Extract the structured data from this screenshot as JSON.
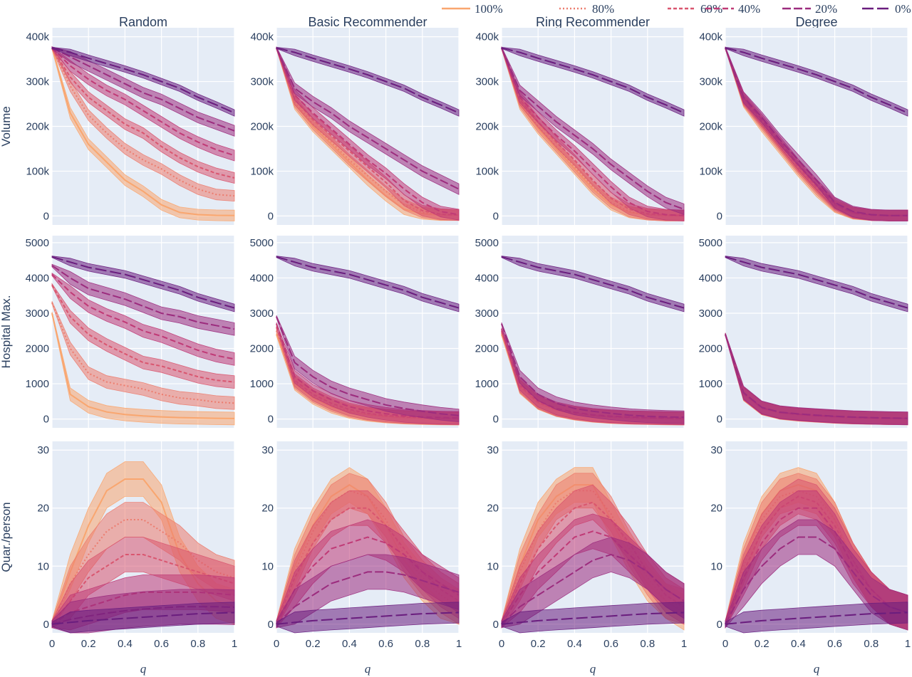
{
  "legend": [
    {
      "label": "100%",
      "color": "#f9a66f",
      "dash": "solid"
    },
    {
      "label": "80%",
      "color": "#ec7c6e",
      "dash": "dot"
    },
    {
      "label": "60%",
      "color": "#d9566f",
      "dash": "dash-short"
    },
    {
      "label": "40%",
      "color": "#c03a76",
      "dash": "dash"
    },
    {
      "label": "20%",
      "color": "#9c2c7e",
      "dash": "dash-long"
    },
    {
      "label": "0%",
      "color": "#6a1d7e",
      "dash": "dash-xlong"
    }
  ],
  "chart_data": {
    "type": "line",
    "layout": "grid-3x4",
    "column_titles": [
      "Random",
      "Basic Recommender",
      "Ring Recommender",
      "Degree"
    ],
    "row_labels": [
      "Volume",
      "Hospital Max.",
      "Quar./person"
    ],
    "x_label": "q",
    "x": [
      0,
      0.1,
      0.2,
      0.3,
      0.4,
      0.5,
      0.6,
      0.7,
      0.8,
      0.9,
      1.0
    ],
    "x_ticks": [
      "0",
      "0.2",
      "0.4",
      "0.6",
      "0.8",
      "1"
    ],
    "rows": [
      {
        "name": "Volume",
        "ylim": [
          -20000,
          420000
        ],
        "y_ticks": [
          {
            "v": 0,
            "t": "0"
          },
          {
            "v": 100000,
            "t": "100k"
          },
          {
            "v": 200000,
            "t": "200k"
          },
          {
            "v": 300000,
            "t": "300k"
          },
          {
            "v": 400000,
            "t": "400k"
          }
        ],
        "band_width": 12000
      },
      {
        "name": "Hospital Max.",
        "ylim": [
          -250,
          5200
        ],
        "y_ticks": [
          {
            "v": 0,
            "t": "0"
          },
          {
            "v": 1000,
            "t": "1000"
          },
          {
            "v": 2000,
            "t": "2000"
          },
          {
            "v": 3000,
            "t": "3000"
          },
          {
            "v": 4000,
            "t": "4000"
          },
          {
            "v": 5000,
            "t": "5000"
          }
        ],
        "band_width": 180
      },
      {
        "name": "Quar./person",
        "ylim": [
          -1.5,
          31.5
        ],
        "y_ticks": [
          {
            "v": 0,
            "t": "0"
          },
          {
            "v": 10,
            "t": "10"
          },
          {
            "v": 20,
            "t": "20"
          },
          {
            "v": 30,
            "t": "30"
          }
        ],
        "band_width": 3
      }
    ],
    "panels": [
      [
        [
          [
            375000,
            230000,
            160000,
            120000,
            80000,
            55000,
            25000,
            8000,
            3000,
            1500,
            1000
          ],
          [
            375000,
            290000,
            225000,
            185000,
            150000,
            125000,
            105000,
            80000,
            60000,
            48000,
            45000
          ],
          [
            375000,
            310000,
            265000,
            235000,
            205000,
            185000,
            155000,
            130000,
            110000,
            95000,
            85000
          ],
          [
            375000,
            335000,
            305000,
            280000,
            260000,
            235000,
            210000,
            185000,
            165000,
            148000,
            135000
          ],
          [
            375000,
            355000,
            335000,
            315000,
            295000,
            275000,
            260000,
            240000,
            220000,
            205000,
            190000
          ],
          [
            375000,
            365000,
            352000,
            340000,
            328000,
            315000,
            300000,
            285000,
            265000,
            248000,
            230000
          ]
        ],
        [
          [
            375000,
            250000,
            200000,
            160000,
            120000,
            80000,
            45000,
            15000,
            5000,
            2000,
            2000
          ],
          [
            375000,
            255000,
            205000,
            165000,
            125000,
            90000,
            55000,
            25000,
            8000,
            3000,
            2000
          ],
          [
            375000,
            260000,
            215000,
            180000,
            145000,
            110000,
            75000,
            35000,
            12000,
            4000,
            2000
          ],
          [
            375000,
            270000,
            230000,
            195000,
            160000,
            125000,
            95000,
            60000,
            30000,
            10000,
            3000
          ],
          [
            375000,
            285000,
            255000,
            230000,
            200000,
            175000,
            150000,
            125000,
            100000,
            80000,
            60000
          ],
          [
            375000,
            365000,
            352000,
            340000,
            328000,
            315000,
            300000,
            285000,
            265000,
            248000,
            230000
          ]
        ],
        [
          [
            375000,
            250000,
            195000,
            150000,
            105000,
            60000,
            25000,
            8000,
            3000,
            1000,
            1000
          ],
          [
            375000,
            255000,
            200000,
            155000,
            110000,
            65000,
            30000,
            10000,
            3000,
            1000,
            1000
          ],
          [
            375000,
            260000,
            210000,
            165000,
            125000,
            80000,
            40000,
            15000,
            5000,
            2000,
            1000
          ],
          [
            375000,
            265000,
            220000,
            180000,
            145000,
            105000,
            65000,
            30000,
            10000,
            3000,
            1000
          ],
          [
            375000,
            280000,
            245000,
            210000,
            180000,
            150000,
            115000,
            85000,
            55000,
            30000,
            15000
          ],
          [
            375000,
            365000,
            352000,
            340000,
            328000,
            315000,
            300000,
            285000,
            265000,
            248000,
            230000
          ]
        ],
        [
          [
            375000,
            255000,
            200000,
            150000,
            100000,
            55000,
            20000,
            5000,
            2000,
            1000,
            1000
          ],
          [
            375000,
            258000,
            205000,
            155000,
            105000,
            60000,
            22000,
            6000,
            2000,
            1000,
            1000
          ],
          [
            375000,
            260000,
            210000,
            160000,
            110000,
            65000,
            25000,
            7000,
            2000,
            1000,
            1000
          ],
          [
            375000,
            263000,
            215000,
            165000,
            115000,
            70000,
            28000,
            8000,
            2000,
            1000,
            1000
          ],
          [
            375000,
            265000,
            220000,
            170000,
            125000,
            80000,
            30000,
            10000,
            3000,
            1000,
            1000
          ],
          [
            375000,
            365000,
            352000,
            340000,
            328000,
            315000,
            300000,
            285000,
            265000,
            248000,
            230000
          ]
        ]
      ],
      [
        [
          [
            3000,
            700,
            350,
            200,
            130,
            90,
            60,
            40,
            30,
            20,
            15
          ],
          [
            3300,
            2000,
            1300,
            1050,
            950,
            850,
            700,
            600,
            550,
            480,
            450
          ],
          [
            3800,
            2900,
            2400,
            2100,
            1850,
            1600,
            1500,
            1350,
            1200,
            1100,
            1050
          ],
          [
            4100,
            3600,
            3200,
            2950,
            2750,
            2500,
            2350,
            2150,
            1950,
            1800,
            1700
          ],
          [
            4350,
            4000,
            3700,
            3550,
            3400,
            3200,
            3000,
            2900,
            2750,
            2650,
            2550
          ],
          [
            4600,
            4450,
            4300,
            4200,
            4100,
            3950,
            3800,
            3650,
            3450,
            3300,
            3150
          ]
        ],
        [
          [
            2400,
            1000,
            600,
            350,
            200,
            120,
            70,
            40,
            25,
            15,
            10
          ],
          [
            2500,
            1050,
            650,
            400,
            230,
            140,
            80,
            50,
            30,
            20,
            15
          ],
          [
            2600,
            1100,
            700,
            450,
            270,
            160,
            100,
            60,
            40,
            25,
            20
          ],
          [
            2700,
            1200,
            800,
            550,
            350,
            230,
            150,
            90,
            60,
            40,
            30
          ],
          [
            2900,
            1600,
            1200,
            900,
            700,
            550,
            400,
            300,
            220,
            150,
            100
          ],
          [
            4600,
            4450,
            4300,
            4200,
            4100,
            3950,
            3800,
            3650,
            3450,
            3300,
            3150
          ]
        ],
        [
          [
            2400,
            900,
            450,
            250,
            150,
            90,
            55,
            35,
            25,
            15,
            10
          ],
          [
            2450,
            920,
            460,
            260,
            155,
            95,
            60,
            38,
            28,
            18,
            12
          ],
          [
            2500,
            950,
            480,
            270,
            165,
            100,
            65,
            40,
            30,
            20,
            15
          ],
          [
            2550,
            1000,
            520,
            300,
            190,
            120,
            80,
            55,
            40,
            30,
            20
          ],
          [
            2700,
            1200,
            700,
            450,
            300,
            220,
            160,
            110,
            80,
            60,
            50
          ],
          [
            4600,
            4450,
            4300,
            4200,
            4100,
            3950,
            3800,
            3650,
            3450,
            3300,
            3150
          ]
        ],
        [
          [
            2400,
            700,
            300,
            170,
            120,
            90,
            60,
            40,
            30,
            20,
            15
          ],
          [
            2400,
            710,
            305,
            175,
            125,
            92,
            62,
            42,
            30,
            20,
            15
          ],
          [
            2400,
            720,
            310,
            180,
            130,
            95,
            65,
            45,
            32,
            22,
            16
          ],
          [
            2400,
            730,
            320,
            185,
            135,
            100,
            70,
            48,
            35,
            24,
            18
          ],
          [
            2400,
            750,
            330,
            195,
            145,
            110,
            80,
            55,
            40,
            28,
            20
          ],
          [
            4600,
            4450,
            4300,
            4200,
            4100,
            3950,
            3800,
            3650,
            3450,
            3300,
            3150
          ]
        ]
      ],
      [
        [
          [
            0,
            9,
            17,
            23,
            25,
            25,
            21,
            12,
            7,
            4,
            3
          ],
          [
            0,
            7,
            12,
            16,
            18,
            18,
            16,
            14,
            11,
            9,
            8
          ],
          [
            0,
            4,
            8,
            10,
            12,
            12,
            11,
            10,
            9,
            8,
            7
          ],
          [
            0,
            2,
            3,
            4,
            5,
            5.5,
            5.5,
            5.5,
            5.5,
            5.3,
            5
          ],
          [
            0,
            0.8,
            1.4,
            1.9,
            2.3,
            2.6,
            2.8,
            3,
            3,
            3,
            2.9
          ],
          [
            0,
            0.3,
            0.6,
            0.8,
            1,
            1.2,
            1.4,
            1.6,
            1.8,
            1.9,
            2
          ]
        ],
        [
          [
            0,
            10,
            17,
            22,
            24,
            22,
            17,
            11,
            7,
            4,
            3
          ],
          [
            0,
            9,
            16,
            21,
            23,
            22,
            18,
            12,
            8,
            5,
            3
          ],
          [
            0,
            8,
            14,
            18,
            20,
            20,
            17,
            13,
            9,
            6,
            4
          ],
          [
            0,
            6,
            10,
            13,
            14,
            15,
            14,
            12,
            9,
            7,
            5
          ],
          [
            0,
            3,
            5,
            7,
            8,
            9,
            9,
            8.5,
            7.5,
            6.5,
            5.5
          ],
          [
            0,
            0.3,
            0.6,
            0.8,
            1,
            1.2,
            1.4,
            1.6,
            1.8,
            1.9,
            2
          ]
        ],
        [
          [
            0,
            10,
            18,
            22,
            24,
            24,
            18,
            12,
            7,
            4,
            2
          ],
          [
            0,
            9,
            16,
            21,
            23,
            23,
            19,
            13,
            8,
            4,
            3
          ],
          [
            0,
            7,
            13,
            17,
            20,
            21,
            18,
            14,
            9,
            5,
            3
          ],
          [
            0,
            5,
            9,
            12,
            15,
            16,
            15,
            12,
            9,
            6,
            4
          ],
          [
            0,
            3,
            5,
            7,
            9,
            11,
            12,
            11,
            9,
            6,
            4
          ],
          [
            0,
            0.3,
            0.6,
            0.8,
            1,
            1.2,
            1.4,
            1.6,
            1.8,
            1.9,
            2
          ]
        ],
        [
          [
            0,
            11,
            19,
            23,
            24,
            23,
            18,
            11,
            6,
            3,
            2
          ],
          [
            0,
            10,
            18,
            22,
            23,
            22,
            18,
            11,
            6,
            3,
            2
          ],
          [
            0,
            9,
            16,
            20,
            22,
            21,
            17,
            11,
            6,
            3,
            2
          ],
          [
            0,
            8,
            14,
            18,
            20,
            20,
            16,
            10,
            6,
            3,
            2
          ],
          [
            0,
            6,
            10,
            13,
            15,
            15,
            13,
            9,
            5,
            3,
            2
          ],
          [
            0,
            0.3,
            0.6,
            0.8,
            1,
            1.2,
            1.4,
            1.6,
            1.8,
            1.9,
            2
          ]
        ]
      ]
    ]
  }
}
